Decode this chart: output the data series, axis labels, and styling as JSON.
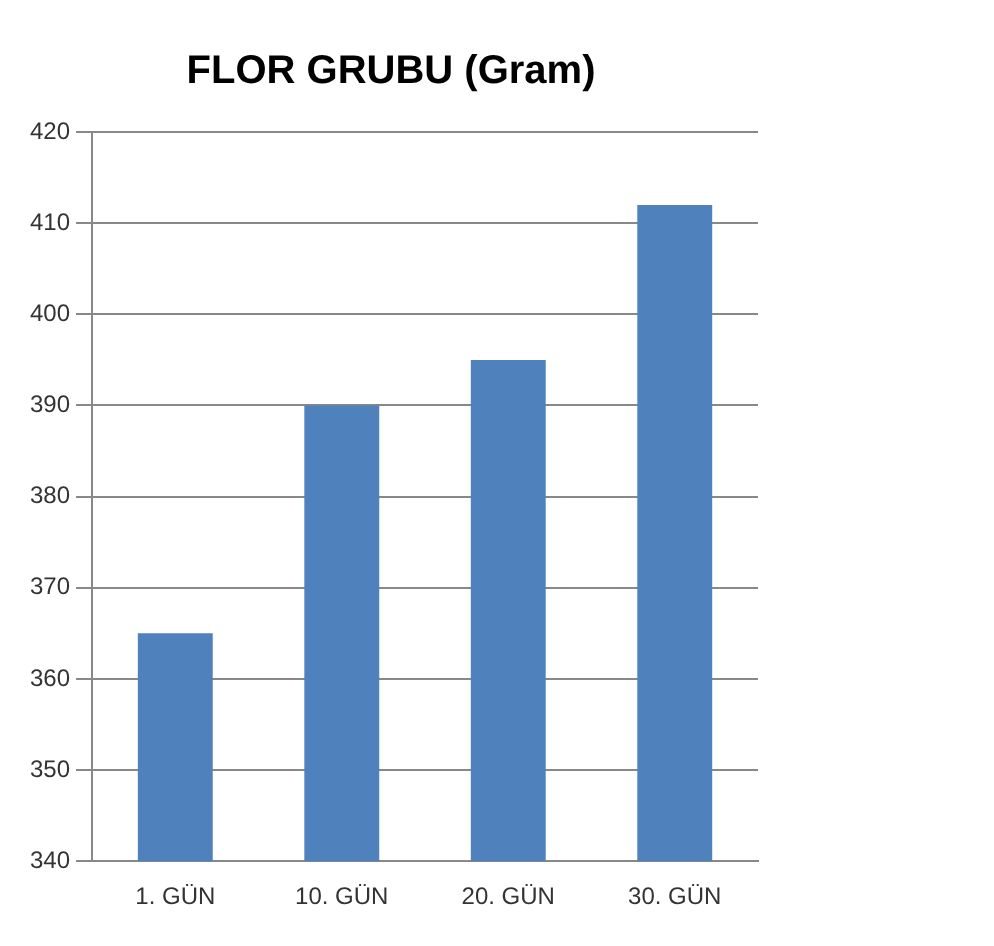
{
  "chart_data": {
    "type": "bar",
    "title": "FLOR GRUBU (Gram)",
    "categories": [
      "1. GÜN",
      "10. GÜN",
      "20. GÜN",
      "30. GÜN"
    ],
    "values": [
      365,
      390,
      395,
      412
    ],
    "color": "#4f81bd",
    "ylim": [
      340,
      420
    ],
    "yticks": [
      340,
      350,
      360,
      370,
      380,
      390,
      400,
      410,
      420
    ],
    "grid": "y",
    "legend": false
  }
}
